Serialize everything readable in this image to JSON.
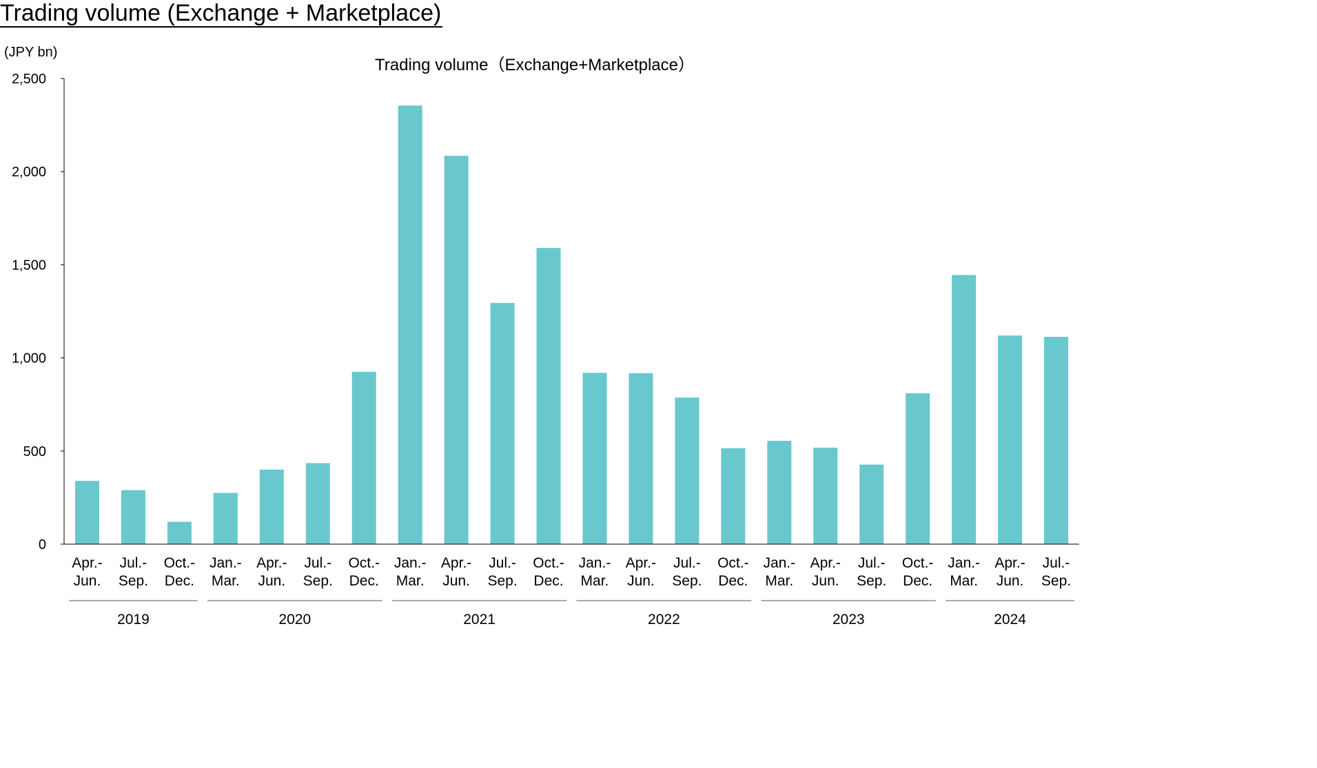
{
  "page_title": "Trading volume (Exchange + Marketplace)",
  "chart_data": {
    "type": "bar",
    "title": "Trading volume（Exchange+Marketplace）",
    "unit_label": "(JPY bn)",
    "ylim": [
      0,
      2500
    ],
    "yticks": [
      0,
      500,
      1000,
      1500,
      2000,
      2500
    ],
    "ytick_labels": [
      "0",
      "500",
      "1,000",
      "1,500",
      "2,000",
      "2,500"
    ],
    "bar_color": "#68C8CE",
    "grid": false,
    "categories": [
      [
        "Apr.-",
        "Jun."
      ],
      [
        "Jul.-",
        "Sep."
      ],
      [
        "Oct.-",
        "Dec."
      ],
      [
        "Jan.-",
        "Mar."
      ],
      [
        "Apr.-",
        "Jun."
      ],
      [
        "Jul.-",
        "Sep."
      ],
      [
        "Oct.-",
        "Dec."
      ],
      [
        "Jan.-",
        "Mar."
      ],
      [
        "Apr.-",
        "Jun."
      ],
      [
        "Jul.-",
        "Sep."
      ],
      [
        "Oct.-",
        "Dec."
      ],
      [
        "Jan.-",
        "Mar."
      ],
      [
        "Apr.-",
        "Jun."
      ],
      [
        "Jul.-",
        "Sep."
      ],
      [
        "Oct.-",
        "Dec."
      ],
      [
        "Jan.-",
        "Mar."
      ],
      [
        "Apr.-",
        "Jun."
      ],
      [
        "Jul.-",
        "Sep."
      ],
      [
        "Oct.-",
        "Dec."
      ],
      [
        "Jan.-",
        "Mar."
      ],
      [
        "Apr.-",
        "Jun."
      ],
      [
        "Jul.-",
        "Sep."
      ]
    ],
    "values": [
      340,
      290,
      120,
      275,
      400,
      435,
      925,
      2355,
      2085,
      1295,
      1590,
      920,
      918,
      787,
      515,
      555,
      518,
      427,
      810,
      1445,
      1120,
      1113
    ],
    "groups": [
      {
        "label": "2019",
        "start": 0,
        "end": 2
      },
      {
        "label": "2020",
        "start": 3,
        "end": 6
      },
      {
        "label": "2021",
        "start": 7,
        "end": 10
      },
      {
        "label": "2022",
        "start": 11,
        "end": 14
      },
      {
        "label": "2023",
        "start": 15,
        "end": 18
      },
      {
        "label": "2024",
        "start": 19,
        "end": 21
      }
    ]
  }
}
